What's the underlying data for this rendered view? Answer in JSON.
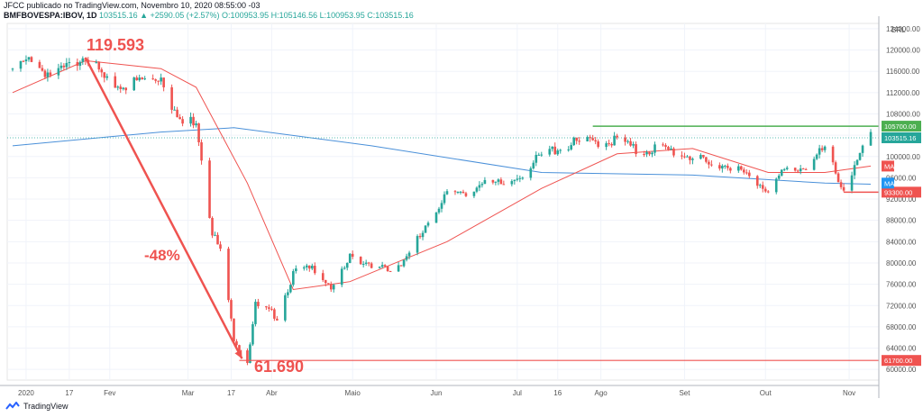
{
  "header": {
    "line1": "JFCC publicado no TradingView.com, Novembro 10, 2020 08:55:00 -03",
    "symbol": "BMFBOVESPA:IBOV, 1D",
    "ohlc": "103515.16 ▲ +2590.05 (+2.57%) O:100953.95 H:105146.56 L:100953.95 C:103515.16"
  },
  "footer": {
    "brand": "TradingView"
  },
  "annotations": {
    "high": "119.593",
    "low": "61.690",
    "drop": "-48%"
  },
  "price_tags": {
    "currency": "BRL",
    "resistance": "105700.00",
    "last": "103515.16",
    "ma_red": "MA",
    "ma_blue": "MA",
    "support": "93300.00",
    "bottom": "61700.00"
  },
  "colors": {
    "up": "#26a69a",
    "down": "#ef5350",
    "ma_short": "#ef5350",
    "ma_long": "#4a90d9",
    "resistance": "#4caf50",
    "support": "#ef5350"
  },
  "chart_data": {
    "type": "candlestick",
    "y_axis": {
      "range": [
        58000,
        125000
      ],
      "ticks": [
        "124000.00",
        "120000.00",
        "116000.00",
        "112000.00",
        "108000.00",
        "104000.00",
        "100000.00",
        "96000.00",
        "92000.00",
        "88000.00",
        "84000.00",
        "80000.00",
        "76000.00",
        "72000.00",
        "68000.00",
        "64000.00",
        "60000.00"
      ]
    },
    "x_axis": {
      "ticks": [
        "2020",
        "17",
        "Fev",
        "Mar",
        "17",
        "Abr",
        "Maio",
        "Jun",
        "Jul",
        "16",
        "Ago",
        "Set",
        "Out",
        "Nov"
      ]
    },
    "close_path": [
      [
        "2019-12-27",
        116500
      ],
      [
        "2020-01-02",
        117800
      ],
      [
        "2020-01-10",
        115500
      ],
      [
        "2020-01-16",
        116500
      ],
      [
        "2020-01-23",
        119593
      ],
      [
        "2020-01-30",
        114500
      ],
      [
        "2020-02-06",
        113000
      ],
      [
        "2020-02-14",
        114500
      ],
      [
        "2020-02-20",
        115000
      ],
      [
        "2020-02-27",
        106000
      ],
      [
        "2020-03-04",
        107000
      ],
      [
        "2020-03-10",
        86000
      ],
      [
        "2020-03-13",
        82000
      ],
      [
        "2020-03-18",
        66000
      ],
      [
        "2020-03-23",
        61690
      ],
      [
        "2020-03-26",
        72000
      ],
      [
        "2020-04-03",
        70000
      ],
      [
        "2020-04-09",
        78000
      ],
      [
        "2020-04-17",
        79000
      ],
      [
        "2020-04-24",
        75000
      ],
      [
        "2020-04-30",
        81000
      ],
      [
        "2020-05-08",
        80000
      ],
      [
        "2020-05-15",
        78000
      ],
      [
        "2020-05-22",
        82000
      ],
      [
        "2020-05-29",
        87000
      ],
      [
        "2020-06-05",
        94000
      ],
      [
        "2020-06-12",
        92000
      ],
      [
        "2020-06-19",
        96000
      ],
      [
        "2020-06-26",
        94000
      ],
      [
        "2020-07-03",
        97000
      ],
      [
        "2020-07-10",
        100000
      ],
      [
        "2020-07-17",
        102000
      ],
      [
        "2020-07-24",
        102500
      ],
      [
        "2020-07-31",
        102900
      ],
      [
        "2020-08-07",
        103000
      ],
      [
        "2020-08-14",
        101000
      ],
      [
        "2020-08-21",
        101500
      ],
      [
        "2020-08-28",
        101000
      ],
      [
        "2020-09-04",
        100000
      ],
      [
        "2020-09-11",
        98000
      ],
      [
        "2020-09-18",
        98500
      ],
      [
        "2020-09-25",
        96000
      ],
      [
        "2020-10-02",
        94000
      ],
      [
        "2020-10-09",
        97500
      ],
      [
        "2020-10-16",
        98000
      ],
      [
        "2020-10-23",
        101500
      ],
      [
        "2020-10-30",
        93900
      ],
      [
        "2020-11-06",
        100900
      ],
      [
        "2020-11-09",
        103515.16
      ]
    ],
    "ma_short": [
      [
        "2019-12-27",
        112000
      ],
      [
        "2020-01-23",
        118000
      ],
      [
        "2020-02-20",
        116500
      ],
      [
        "2020-03-04",
        113000
      ],
      [
        "2020-03-23",
        95000
      ],
      [
        "2020-04-09",
        75000
      ],
      [
        "2020-04-30",
        76500
      ],
      [
        "2020-06-05",
        84000
      ],
      [
        "2020-07-10",
        94000
      ],
      [
        "2020-08-07",
        100500
      ],
      [
        "2020-09-04",
        101500
      ],
      [
        "2020-10-02",
        97000
      ],
      [
        "2020-10-23",
        97000
      ],
      [
        "2020-11-09",
        98200
      ]
    ],
    "ma_long": [
      [
        "2019-12-27",
        102000
      ],
      [
        "2020-02-20",
        104600
      ],
      [
        "2020-03-18",
        105400
      ],
      [
        "2020-05-08",
        102000
      ],
      [
        "2020-07-10",
        97000
      ],
      [
        "2020-09-04",
        96500
      ],
      [
        "2020-10-23",
        95000
      ],
      [
        "2020-11-09",
        94800
      ]
    ],
    "levels": {
      "high": 119593,
      "low": 61690,
      "resistance": 105700,
      "support": 93300,
      "last": 103515.16,
      "drop_percent": -48
    }
  }
}
